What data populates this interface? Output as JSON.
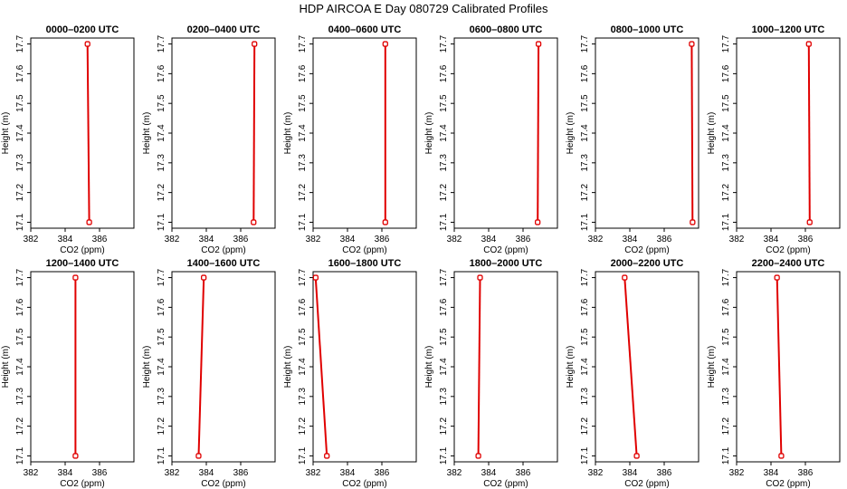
{
  "figure_title": "HDP AIRCOA E  Day 080729  Calibrated Profiles",
  "chart_data": [
    {
      "type": "line",
      "title": "0000–0200 UTC",
      "xlabel": "CO2 (ppm)",
      "ylabel": "Height (m)",
      "xlim": [
        382,
        388
      ],
      "ylim": [
        17.08,
        17.72
      ],
      "xticks": [
        "382",
        "384",
        "386"
      ],
      "yticks": [
        "17.1",
        "17.2",
        "17.3",
        "17.4",
        "17.5",
        "17.6",
        "17.7"
      ],
      "x": [
        385.3,
        385.4
      ],
      "y": [
        17.7,
        17.1
      ]
    },
    {
      "type": "line",
      "title": "0200–0400 UTC",
      "xlabel": "CO2 (ppm)",
      "ylabel": "Height (m)",
      "xlim": [
        382,
        388
      ],
      "ylim": [
        17.08,
        17.72
      ],
      "xticks": [
        "382",
        "384",
        "386"
      ],
      "yticks": [
        "17.1",
        "17.2",
        "17.3",
        "17.4",
        "17.5",
        "17.6",
        "17.7"
      ],
      "x": [
        386.8,
        386.75
      ],
      "y": [
        17.7,
        17.1
      ]
    },
    {
      "type": "line",
      "title": "0400–0600 UTC",
      "xlabel": "CO2 (ppm)",
      "ylabel": "Height (m)",
      "xlim": [
        382,
        388
      ],
      "ylim": [
        17.08,
        17.72
      ],
      "xticks": [
        "382",
        "384",
        "386"
      ],
      "yticks": [
        "17.1",
        "17.2",
        "17.3",
        "17.4",
        "17.5",
        "17.6",
        "17.7"
      ],
      "x": [
        386.2,
        386.2
      ],
      "y": [
        17.7,
        17.1
      ]
    },
    {
      "type": "line",
      "title": "0600–0800 UTC",
      "xlabel": "CO2 (ppm)",
      "ylabel": "Height (m)",
      "xlim": [
        382,
        388
      ],
      "ylim": [
        17.08,
        17.72
      ],
      "xticks": [
        "382",
        "384",
        "386"
      ],
      "yticks": [
        "17.1",
        "17.2",
        "17.3",
        "17.4",
        "17.5",
        "17.6",
        "17.7"
      ],
      "x": [
        386.9,
        386.85
      ],
      "y": [
        17.7,
        17.1
      ]
    },
    {
      "type": "line",
      "title": "0800–1000 UTC",
      "xlabel": "CO2 (ppm)",
      "ylabel": "Height (m)",
      "xlim": [
        382,
        388
      ],
      "ylim": [
        17.08,
        17.72
      ],
      "xticks": [
        "382",
        "384",
        "386"
      ],
      "yticks": [
        "17.1",
        "17.2",
        "17.3",
        "17.4",
        "17.5",
        "17.6",
        "17.7"
      ],
      "x": [
        387.6,
        387.65
      ],
      "y": [
        17.7,
        17.1
      ]
    },
    {
      "type": "line",
      "title": "1000–1200 UTC",
      "xlabel": "CO2 (ppm)",
      "ylabel": "Height (m)",
      "xlim": [
        382,
        388
      ],
      "ylim": [
        17.08,
        17.72
      ],
      "xticks": [
        "382",
        "384",
        "386"
      ],
      "yticks": [
        "17.1",
        "17.2",
        "17.3",
        "17.4",
        "17.5",
        "17.6",
        "17.7"
      ],
      "x": [
        386.2,
        386.25
      ],
      "y": [
        17.7,
        17.1
      ]
    },
    {
      "type": "line",
      "title": "1200–1400 UTC",
      "xlabel": "CO2 (ppm)",
      "ylabel": "Height (m)",
      "xlim": [
        382,
        388
      ],
      "ylim": [
        17.08,
        17.72
      ],
      "xticks": [
        "382",
        "384",
        "386"
      ],
      "yticks": [
        "17.1",
        "17.2",
        "17.3",
        "17.4",
        "17.5",
        "17.6",
        "17.7"
      ],
      "x": [
        384.6,
        384.6
      ],
      "y": [
        17.7,
        17.1
      ]
    },
    {
      "type": "line",
      "title": "1400–1600 UTC",
      "xlabel": "CO2 (ppm)",
      "ylabel": "Height (m)",
      "xlim": [
        382,
        388
      ],
      "ylim": [
        17.08,
        17.72
      ],
      "xticks": [
        "382",
        "384",
        "386"
      ],
      "yticks": [
        "17.1",
        "17.2",
        "17.3",
        "17.4",
        "17.5",
        "17.6",
        "17.7"
      ],
      "x": [
        383.85,
        383.55
      ],
      "y": [
        17.7,
        17.1
      ]
    },
    {
      "type": "line",
      "title": "1600–1800 UTC",
      "xlabel": "CO2 (ppm)",
      "ylabel": "Height (m)",
      "xlim": [
        382,
        388
      ],
      "ylim": [
        17.08,
        17.72
      ],
      "xticks": [
        "382",
        "384",
        "386"
      ],
      "yticks": [
        "17.1",
        "17.2",
        "17.3",
        "17.4",
        "17.5",
        "17.6",
        "17.7"
      ],
      "x": [
        382.15,
        382.8
      ],
      "y": [
        17.7,
        17.1
      ]
    },
    {
      "type": "line",
      "title": "1800–2000 UTC",
      "xlabel": "CO2 (ppm)",
      "ylabel": "Height (m)",
      "xlim": [
        382,
        388
      ],
      "ylim": [
        17.08,
        17.72
      ],
      "xticks": [
        "382",
        "384",
        "386"
      ],
      "yticks": [
        "17.1",
        "17.2",
        "17.3",
        "17.4",
        "17.5",
        "17.6",
        "17.7"
      ],
      "x": [
        383.5,
        383.4
      ],
      "y": [
        17.7,
        17.1
      ]
    },
    {
      "type": "line",
      "title": "2000–2200 UTC",
      "xlabel": "CO2 (ppm)",
      "ylabel": "Height (m)",
      "xlim": [
        382,
        388
      ],
      "ylim": [
        17.08,
        17.72
      ],
      "xticks": [
        "382",
        "384",
        "386"
      ],
      "yticks": [
        "17.1",
        "17.2",
        "17.3",
        "17.4",
        "17.5",
        "17.6",
        "17.7"
      ],
      "x": [
        383.7,
        384.4
      ],
      "y": [
        17.7,
        17.1
      ]
    },
    {
      "type": "line",
      "title": "2200–2400 UTC",
      "xlabel": "CO2 (ppm)",
      "ylabel": "Height (m)",
      "xlim": [
        382,
        388
      ],
      "ylim": [
        17.08,
        17.72
      ],
      "xticks": [
        "382",
        "384",
        "386"
      ],
      "yticks": [
        "17.1",
        "17.2",
        "17.3",
        "17.4",
        "17.5",
        "17.6",
        "17.7"
      ],
      "x": [
        384.35,
        384.6
      ],
      "y": [
        17.7,
        17.1
      ]
    }
  ],
  "colors": {
    "series": "#e00000",
    "axes": "#000000",
    "background": "#ffffff"
  }
}
